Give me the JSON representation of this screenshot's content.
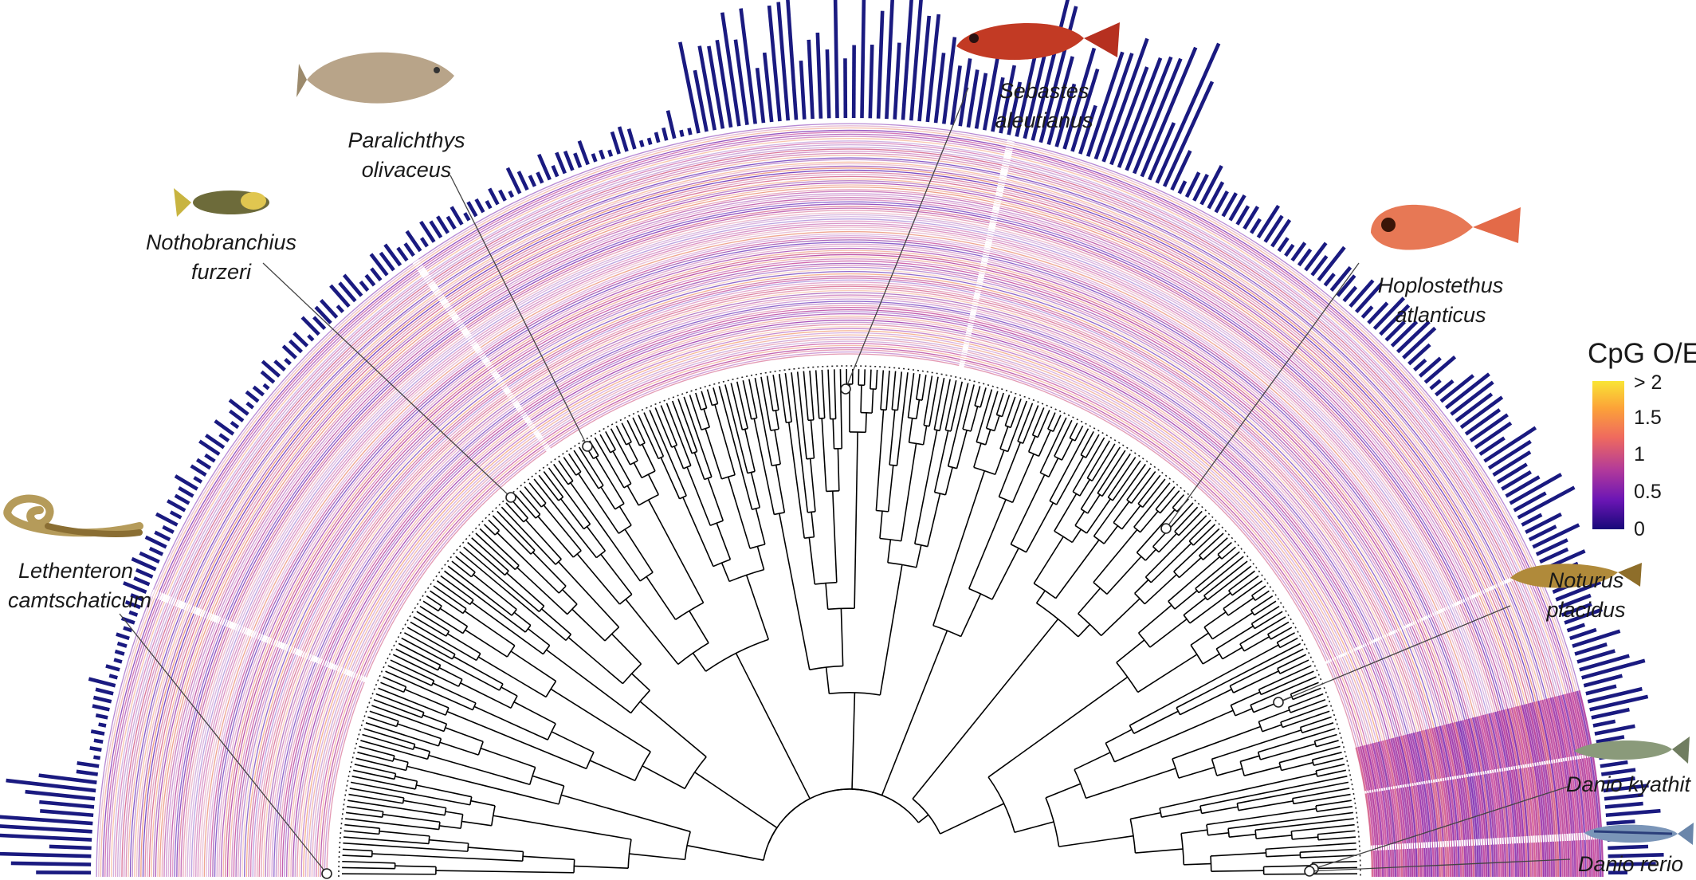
{
  "species": [
    {
      "line1": "Lethenteron",
      "line2": "camtschaticum"
    },
    {
      "line1": "Nothobranchius",
      "line2": "furzeri"
    },
    {
      "line1": "Paralichthys",
      "line2": "olivaceus"
    },
    {
      "line1": "Sebastes",
      "line2": "aleutianus"
    },
    {
      "line1": "Hoplostethus",
      "line2": "atlanticus"
    },
    {
      "line1": "Noturus",
      "line2": "placidus"
    },
    {
      "line1": "Danio kyathit",
      "line2": ""
    },
    {
      "line1": "Danio rerio",
      "line2": ""
    }
  ],
  "legend": {
    "title": "CpG O/E",
    "ticks": [
      "> 2",
      "1.5",
      "1",
      "0.5",
      "0"
    ]
  },
  "colors": {
    "bars": "#1a1a80",
    "scale_high": "#f9e535",
    "scale_mid": "#ef6a5e",
    "scale_low": "#18087a",
    "tree": "#000000"
  },
  "icons": [
    "lamprey-icon",
    "killifish-icon",
    "flounder-icon",
    "rockfish-icon",
    "orange-roughy-icon",
    "catfish-icon",
    "spotted-danio-icon",
    "zebrafish-icon"
  ]
}
